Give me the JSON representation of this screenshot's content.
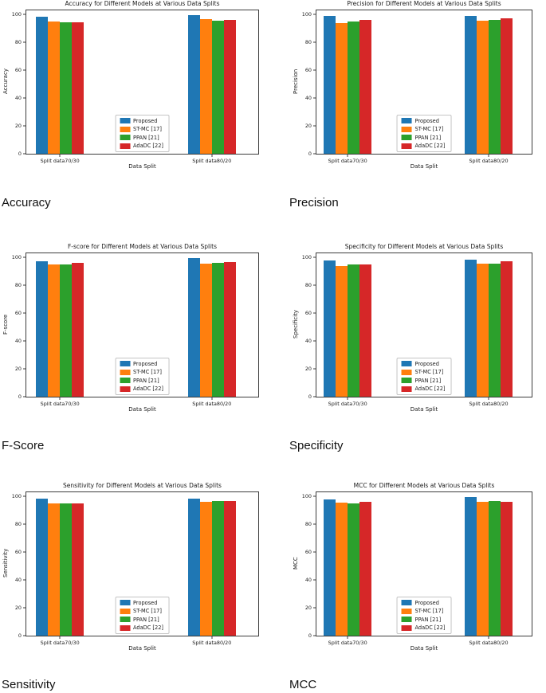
{
  "page": {
    "background": "#ffffff",
    "text_color": "#1a1a1a"
  },
  "models": [
    {
      "name": "Proposed",
      "color": "#1f77b4"
    },
    {
      "name": "ST-MC [17]",
      "color": "#ff7f0e"
    },
    {
      "name": "PPAN [21]",
      "color": "#2ca02c"
    },
    {
      "name": "AdaDC [22]",
      "color": "#d62728"
    }
  ],
  "chart_data": [
    {
      "type": "bar",
      "title": "Accuracy for Different Models at Various Data Splits",
      "caption": "Accuracy",
      "xlabel": "Data Split",
      "ylabel": "Accuracy",
      "categories": [
        "Split data70/30",
        "Split data80/20"
      ],
      "series": [
        {
          "name": "Proposed",
          "values": [
            98.2,
            99.3
          ]
        },
        {
          "name": "ST-MC [17]",
          "values": [
            95.2,
            96.6
          ]
        },
        {
          "name": "PPAN [21]",
          "values": [
            94.5,
            95.8
          ]
        },
        {
          "name": "AdaDC [22]",
          "values": [
            94.7,
            96.1
          ]
        }
      ],
      "yticks": [
        0,
        20,
        40,
        60,
        80,
        100
      ],
      "ylim": [
        0,
        103
      ],
      "grid": false,
      "legend_position": "lower center"
    },
    {
      "type": "bar",
      "title": "Precision for Different Models at Various Data Splits",
      "caption": "Precision",
      "xlabel": "Data Split",
      "ylabel": "Precision",
      "categories": [
        "Split data70/30",
        "Split data80/20"
      ],
      "series": [
        {
          "name": "Proposed",
          "values": [
            99.0,
            99.2
          ]
        },
        {
          "name": "ST-MC [17]",
          "values": [
            94.1,
            95.7
          ]
        },
        {
          "name": "PPAN [21]",
          "values": [
            95.2,
            96.1
          ]
        },
        {
          "name": "AdaDC [22]",
          "values": [
            96.1,
            97.1
          ]
        }
      ],
      "yticks": [
        0,
        20,
        40,
        60,
        80,
        100
      ],
      "ylim": [
        0,
        103
      ],
      "grid": false,
      "legend_position": "lower center"
    },
    {
      "type": "bar",
      "title": "F-score for Different Models at Various Data Splits",
      "caption": "F-Score",
      "xlabel": "Data Split",
      "ylabel": "F-score",
      "categories": [
        "Split data70/30",
        "Split data80/20"
      ],
      "series": [
        {
          "name": "Proposed",
          "values": [
            97.5,
            99.4
          ]
        },
        {
          "name": "ST-MC [17]",
          "values": [
            95.0,
            95.6
          ]
        },
        {
          "name": "PPAN [21]",
          "values": [
            95.2,
            96.1
          ]
        },
        {
          "name": "AdaDC [22]",
          "values": [
            95.9,
            97.0
          ]
        }
      ],
      "yticks": [
        0,
        20,
        40,
        60,
        80,
        100
      ],
      "ylim": [
        0,
        103
      ],
      "grid": false,
      "legend_position": "lower center"
    },
    {
      "type": "bar",
      "title": "Specificity for Different Models at Various Data Splits",
      "caption": "Specificity",
      "xlabel": "Data Split",
      "ylabel": "Specificity",
      "categories": [
        "Split data70/30",
        "Split data80/20"
      ],
      "series": [
        {
          "name": "Proposed",
          "values": [
            98.1,
            98.7
          ]
        },
        {
          "name": "ST-MC [17]",
          "values": [
            94.1,
            95.7
          ]
        },
        {
          "name": "PPAN [21]",
          "values": [
            95.1,
            95.6
          ]
        },
        {
          "name": "AdaDC [22]",
          "values": [
            95.1,
            97.1
          ]
        }
      ],
      "yticks": [
        0,
        20,
        40,
        60,
        80,
        100
      ],
      "ylim": [
        0,
        103
      ],
      "grid": false,
      "legend_position": "lower center"
    },
    {
      "type": "bar",
      "title": "Sensitivity for Different Models at Various Data Splits",
      "caption": "Sensitivity",
      "xlabel": "Data Split",
      "ylabel": "Sensitivity",
      "categories": [
        "Split data70/30",
        "Split data80/20"
      ],
      "series": [
        {
          "name": "Proposed",
          "values": [
            98.2,
            98.2
          ]
        },
        {
          "name": "ST-MC [17]",
          "values": [
            95.1,
            96.4
          ]
        },
        {
          "name": "PPAN [21]",
          "values": [
            95.1,
            96.6
          ]
        },
        {
          "name": "AdaDC [22]",
          "values": [
            95.2,
            96.9
          ]
        }
      ],
      "yticks": [
        0,
        20,
        40,
        60,
        80,
        100
      ],
      "ylim": [
        0,
        103
      ],
      "grid": false,
      "legend_position": "lower center"
    },
    {
      "type": "bar",
      "title": "MCC for Different Models at Various Data Splits",
      "caption": "MCC",
      "xlabel": "Data Split",
      "ylabel": "MCC",
      "categories": [
        "Split data70/30",
        "Split data80/20"
      ],
      "series": [
        {
          "name": "Proposed",
          "values": [
            98.0,
            99.5
          ]
        },
        {
          "name": "ST-MC [17]",
          "values": [
            95.8,
            96.2
          ]
        },
        {
          "name": "PPAN [21]",
          "values": [
            95.0,
            96.9
          ]
        },
        {
          "name": "AdaDC [22]",
          "values": [
            95.9,
            96.3
          ]
        }
      ],
      "yticks": [
        0,
        20,
        40,
        60,
        80,
        100
      ],
      "ylim": [
        0,
        103
      ],
      "grid": false,
      "legend_position": "lower center"
    }
  ]
}
